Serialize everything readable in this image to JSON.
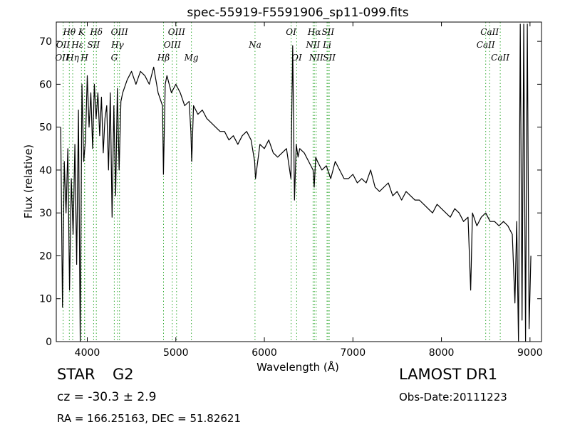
{
  "chart_data": {
    "type": "line",
    "title": "spec-55919-F5591906_sp11-099.fits",
    "xlabel": "Wavelength (Å)",
    "ylabel": "Flux (relative)",
    "xlim": [
      3650,
      9130
    ],
    "ylim": [
      0,
      74.5
    ],
    "xticks": [
      4000,
      5000,
      6000,
      7000,
      8000,
      9000
    ],
    "yticks": [
      0,
      10,
      20,
      30,
      40,
      50,
      60,
      70
    ],
    "grid": false,
    "line_color": "#000000",
    "marker_color": "#33aa33",
    "series": [
      {
        "x": [
          3700,
          3720,
          3740,
          3760,
          3780,
          3800,
          3820,
          3840,
          3860,
          3880,
          3900,
          3920,
          3940,
          3960,
          3980,
          4000,
          4020,
          4040,
          4060,
          4080,
          4100,
          4120,
          4140,
          4160,
          4180,
          4200,
          4220,
          4240,
          4260,
          4280,
          4300,
          4320,
          4340,
          4360,
          4380,
          4400,
          4450,
          4500,
          4550,
          4600,
          4650,
          4700,
          4750,
          4800,
          4850,
          4860,
          4880,
          4900,
          4950,
          5000,
          5050,
          5100,
          5150,
          5170,
          5180,
          5200,
          5250,
          5300,
          5350,
          5400,
          5450,
          5500,
          5550,
          5600,
          5650,
          5700,
          5750,
          5800,
          5850,
          5890,
          5900,
          5950,
          6000,
          6050,
          6100,
          6150,
          6200,
          6250,
          6300,
          6320,
          6340,
          6360,
          6380,
          6400,
          6450,
          6500,
          6550,
          6563,
          6580,
          6600,
          6650,
          6700,
          6750,
          6800,
          6850,
          6900,
          6950,
          7000,
          7050,
          7100,
          7150,
          7200,
          7250,
          7300,
          7350,
          7400,
          7450,
          7500,
          7550,
          7600,
          7650,
          7700,
          7750,
          7800,
          7850,
          7900,
          7950,
          8000,
          8050,
          8100,
          8150,
          8200,
          8250,
          8300,
          8330,
          8350,
          8400,
          8450,
          8500,
          8550,
          8600,
          8650,
          8700,
          8750,
          8800,
          8830,
          8850,
          8870,
          8890,
          8910,
          8930,
          8950,
          8970,
          8990,
          9010
        ],
        "values": [
          50,
          8,
          42,
          30,
          45,
          12,
          38,
          25,
          46,
          18,
          54,
          0,
          60,
          42,
          47,
          62,
          50,
          58,
          45,
          60,
          52,
          58,
          48,
          57,
          44,
          52,
          55,
          40,
          58,
          29,
          55,
          34,
          59,
          40,
          56,
          58,
          61,
          63,
          60,
          63,
          62,
          60,
          64,
          58,
          55,
          39,
          60,
          62,
          58,
          60,
          58,
          55,
          56,
          49,
          42,
          55,
          53,
          54,
          52,
          51,
          50,
          49,
          49,
          47,
          48,
          46,
          48,
          49,
          47,
          42,
          38,
          46,
          45,
          47,
          44,
          43,
          44,
          45,
          38,
          69,
          33,
          46,
          43,
          45,
          44,
          42,
          40,
          36,
          43,
          42,
          40,
          41,
          38,
          42,
          40,
          38,
          38,
          39,
          37,
          38,
          37,
          40,
          36,
          35,
          36,
          37,
          34,
          35,
          33,
          35,
          34,
          33,
          33,
          32,
          31,
          30,
          32,
          31,
          30,
          29,
          31,
          30,
          28,
          29,
          12,
          30,
          27,
          29,
          30,
          28,
          28,
          27,
          28,
          27,
          25,
          9,
          28,
          0,
          74,
          5,
          74,
          0,
          74,
          3,
          20
        ]
      }
    ],
    "lines": [
      {
        "name": "Hθ",
        "x": 3797
      },
      {
        "name": "OII",
        "x": 3727
      },
      {
        "name": "Hη",
        "x": 3835
      },
      {
        "name": "Hε",
        "x": 3970
      },
      {
        "name": "K",
        "x": 3934
      },
      {
        "name": "H",
        "x": 3969
      },
      {
        "name": "SII",
        "x": 4072
      },
      {
        "name": "Hδ",
        "x": 4102
      },
      {
        "name": "G",
        "x": 4305
      },
      {
        "name": "Hγ",
        "x": 4341
      },
      {
        "name": "OIII",
        "x": 4364
      },
      {
        "name": "Hβ",
        "x": 4861
      },
      {
        "name": "OIII",
        "x": 4960
      },
      {
        "name": "OIII",
        "x": 5008
      },
      {
        "name": "Mg",
        "x": 5176
      },
      {
        "name": "Na",
        "x": 5894
      },
      {
        "name": "OI",
        "x": 6302
      },
      {
        "name": "OI",
        "x": 6365
      },
      {
        "name": "NII",
        "x": 6550
      },
      {
        "name": "Hα",
        "x": 6565
      },
      {
        "name": "NII",
        "x": 6585
      },
      {
        "name": "Li",
        "x": 6708
      },
      {
        "name": "SII",
        "x": 6718
      },
      {
        "name": "SII",
        "x": 6733
      },
      {
        "name": "CaII",
        "x": 8500
      },
      {
        "name": "CaII",
        "x": 8544
      },
      {
        "name": "CaII",
        "x": 8664
      }
    ],
    "line_labels": [
      {
        "text": "Hθ",
        "x": 3797,
        "row": 0
      },
      {
        "text": "K",
        "x": 3934,
        "row": 0
      },
      {
        "text": "Hδ",
        "x": 4102,
        "row": 0
      },
      {
        "text": "OIII",
        "x": 4364,
        "row": 0
      },
      {
        "text": "OIII",
        "x": 5008,
        "row": 0
      },
      {
        "text": "OI",
        "x": 6302,
        "row": 0
      },
      {
        "text": "Hα",
        "x": 6565,
        "row": 0
      },
      {
        "text": "SII",
        "x": 6718,
        "row": 0
      },
      {
        "text": "CaII",
        "x": 8544,
        "row": 0
      },
      {
        "text": "OII",
        "x": 3727,
        "row": 1
      },
      {
        "text": "Hε",
        "x": 3890,
        "row": 1
      },
      {
        "text": "SII",
        "x": 4072,
        "row": 1
      },
      {
        "text": "Hγ",
        "x": 4341,
        "row": 1
      },
      {
        "text": "OIII",
        "x": 4960,
        "row": 1
      },
      {
        "text": "Na",
        "x": 5894,
        "row": 1
      },
      {
        "text": "NII",
        "x": 6550,
        "row": 1
      },
      {
        "text": "Li",
        "x": 6708,
        "row": 1
      },
      {
        "text": "CaII",
        "x": 8500,
        "row": 1
      },
      {
        "text": "OII",
        "x": 3715,
        "row": 2
      },
      {
        "text": "Hη",
        "x": 3835,
        "row": 2
      },
      {
        "text": "H",
        "x": 3969,
        "row": 2
      },
      {
        "text": "G",
        "x": 4305,
        "row": 2
      },
      {
        "text": "Hβ",
        "x": 4861,
        "row": 2
      },
      {
        "text": "Mg",
        "x": 5176,
        "row": 2
      },
      {
        "text": "OI",
        "x": 6365,
        "row": 2
      },
      {
        "text": "NII",
        "x": 6585,
        "row": 2
      },
      {
        "text": "SII",
        "x": 6733,
        "row": 2
      },
      {
        "text": "CaII",
        "x": 8664,
        "row": 2
      }
    ]
  },
  "info": {
    "class": "STAR",
    "subclass": "G2",
    "survey": "LAMOST DR1",
    "cz": "cz = -30.3 ± 2.9",
    "obs_date": "Obs-Date:20111223",
    "radec": "RA = 166.25163, DEC = 51.82621"
  }
}
